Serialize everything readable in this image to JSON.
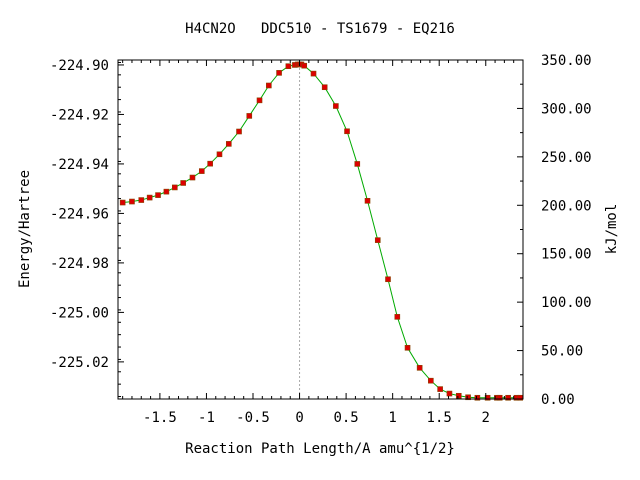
{
  "chart_data": {
    "type": "line",
    "title": "H4CN2O   DDC510 - TS1679 - EQ216",
    "xlabel": "Reaction Path Length/A amu^{1/2}",
    "ylabel": "Energy/Hartree",
    "y2label": "kJ/mol",
    "xlim": [
      -1.95,
      2.4
    ],
    "ylim": [
      -225.035,
      -224.898
    ],
    "y2lim": [
      0.0,
      350.0
    ],
    "x_ticks": [
      -1.5,
      -1,
      -0.5,
      0,
      0.5,
      1,
      1.5,
      2
    ],
    "x_tick_labels": [
      "-1.5",
      "-1",
      "-0.5",
      "0",
      "0.5",
      "1",
      "1.5",
      "2"
    ],
    "y_ticks": [
      -224.9,
      -224.92,
      -224.94,
      -224.96,
      -224.98,
      -225.0,
      -225.02
    ],
    "y_tick_labels": [
      "-224.90",
      "-224.92",
      "-224.94",
      "-224.96",
      "-224.98",
      "-225.00",
      "-225.02"
    ],
    "y2_ticks": [
      0,
      50,
      100,
      150,
      200,
      250,
      300,
      350
    ],
    "y2_tick_labels": [
      "0.00",
      "50.00",
      "100.00",
      "150.00",
      "200.00",
      "250.00",
      "300.00",
      "350.00"
    ],
    "ts_marker_x": 0,
    "grid": false,
    "colors": {
      "line": "#00aa00",
      "marker": "#dd0000",
      "marker_edge": "#884400",
      "ts_line": "#aaaaaa"
    },
    "series": [
      {
        "x": [
          -1.9,
          -1.8,
          -1.7,
          -1.61,
          -1.52,
          -1.43,
          -1.34,
          -1.25,
          -1.15,
          -1.05,
          -0.96,
          -0.86,
          -0.76,
          -0.65,
          -0.54,
          -0.43,
          -0.33,
          -0.22,
          -0.12,
          -0.05,
          -0.02,
          0.0,
          0.02,
          0.05,
          0.15,
          0.27,
          0.39,
          0.51,
          0.62,
          0.73,
          0.84,
          0.95,
          1.05,
          1.16,
          1.29,
          1.41,
          1.51,
          1.61,
          1.71,
          1.81,
          1.91,
          2.02,
          2.12,
          2.15,
          2.24,
          2.33,
          2.37
        ],
        "y": [
          -224.9556,
          -224.9552,
          -224.9546,
          -224.9536,
          -224.9526,
          -224.9512,
          -224.9495,
          -224.9477,
          -224.9455,
          -224.9429,
          -224.9399,
          -224.9361,
          -224.9319,
          -224.9269,
          -224.9206,
          -224.9143,
          -224.9083,
          -224.9032,
          -224.9005,
          -224.9,
          -224.8998,
          -224.8998,
          -224.8998,
          -224.9003,
          -224.9035,
          -224.909,
          -224.9166,
          -224.9268,
          -224.94,
          -224.9549,
          -224.9708,
          -224.9866,
          -225.0018,
          -225.0143,
          -225.0224,
          -225.0276,
          -225.031,
          -225.0328,
          -225.0337,
          -225.0343,
          -225.0345,
          -225.0345,
          -225.0345,
          -225.0345,
          -225.0345,
          -225.0345,
          -225.0345
        ]
      }
    ]
  }
}
